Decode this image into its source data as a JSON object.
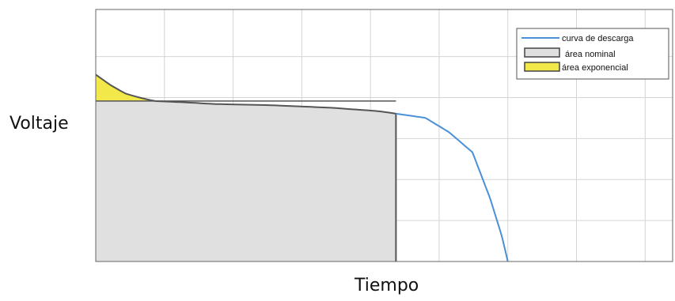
{
  "chart_data": {
    "type": "line",
    "title": "",
    "xlabel": "Tiempo",
    "ylabel": "Voltaje",
    "xlim": [
      0,
      9.8
    ],
    "ylim": [
      0,
      6
    ],
    "grid": true,
    "tick_labels_shown": false,
    "legend_position": "top-right",
    "series": [
      {
        "name": "curva de descarga",
        "color": "#4a90d9",
        "x": [
          0,
          0.25,
          0.5,
          0.75,
          1.0,
          1.5,
          2.0,
          3.0,
          4.0,
          4.8,
          5.6,
          6.0,
          6.4,
          6.7,
          6.9,
          7.0
        ],
        "y": [
          4.45,
          4.2,
          4.0,
          3.9,
          3.82,
          3.79,
          3.75,
          3.72,
          3.66,
          3.58,
          3.42,
          3.08,
          2.6,
          1.5,
          0.6,
          0
        ]
      }
    ],
    "areas": [
      {
        "name": "área nominal",
        "color": "#e0e0e0",
        "x_end": 5.1
      },
      {
        "name": "área exponencial",
        "color": "#f2e84a",
        "x_end": 1.0,
        "baseline": 3.82
      }
    ]
  }
}
